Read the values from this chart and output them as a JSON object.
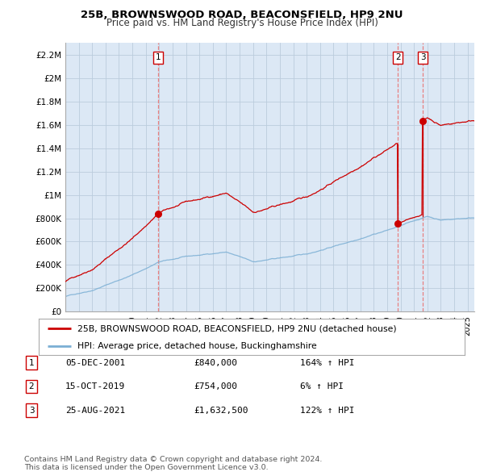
{
  "title1": "25B, BROWNSWOOD ROAD, BEACONSFIELD, HP9 2NU",
  "title2": "Price paid vs. HM Land Registry's House Price Index (HPI)",
  "yticks": [
    0,
    200000,
    400000,
    600000,
    800000,
    1000000,
    1200000,
    1400000,
    1600000,
    1800000,
    2000000,
    2200000
  ],
  "ytick_labels": [
    "£0",
    "£200K",
    "£400K",
    "£600K",
    "£800K",
    "£1M",
    "£1.2M",
    "£1.4M",
    "£1.6M",
    "£1.8M",
    "£2M",
    "£2.2M"
  ],
  "xmin": 1995.0,
  "xmax": 2025.5,
  "ymin": 0,
  "ymax": 2300000,
  "sale_dates": [
    2001.92,
    2019.79,
    2021.65
  ],
  "sale_prices": [
    840000,
    754000,
    1632500
  ],
  "sale_labels": [
    "1",
    "2",
    "3"
  ],
  "vline_color": "#e88080",
  "dot_color": "#cc0000",
  "line_color_red": "#cc0000",
  "line_color_blue": "#7bafd4",
  "chart_bg": "#dce8f5",
  "legend_label_red": "25B, BROWNSWOOD ROAD, BEACONSFIELD, HP9 2NU (detached house)",
  "legend_label_blue": "HPI: Average price, detached house, Buckinghamshire",
  "table_rows": [
    [
      "1",
      "05-DEC-2001",
      "£840,000",
      "164% ↑ HPI"
    ],
    [
      "2",
      "15-OCT-2019",
      "£754,000",
      "6% ↑ HPI"
    ],
    [
      "3",
      "25-AUG-2021",
      "£1,632,500",
      "122% ↑ HPI"
    ]
  ],
  "footer": "Contains HM Land Registry data © Crown copyright and database right 2024.\nThis data is licensed under the Open Government Licence v3.0.",
  "background_color": "#ffffff",
  "grid_color": "#bbccdd"
}
